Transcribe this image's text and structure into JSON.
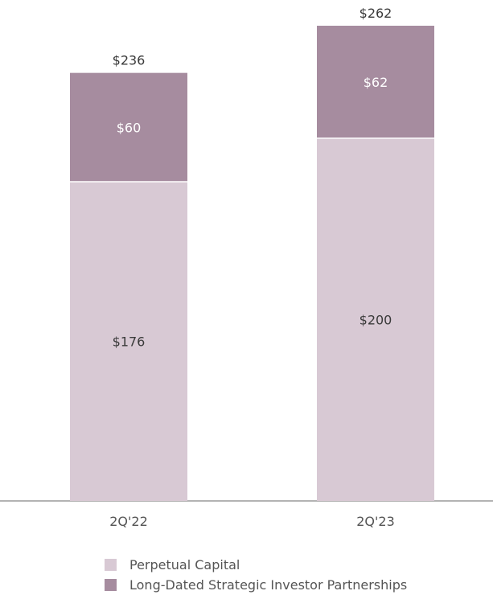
{
  "chart_data": {
    "type": "bar",
    "stacked": true,
    "categories": [
      "2Q'22",
      "2Q'23"
    ],
    "series": [
      {
        "name": "Perpetual Capital",
        "values": [
          176,
          200
        ],
        "value_labels": [
          "$176",
          "$200"
        ],
        "color": "#d8c9d4"
      },
      {
        "name": "Long-Dated Strategic Investor Partnerships",
        "values": [
          60,
          62
        ],
        "value_labels": [
          "$60",
          "$62"
        ],
        "color": "#a68c9f"
      }
    ],
    "totals": [
      236,
      262
    ],
    "total_labels": [
      "$236",
      "$262"
    ],
    "ylim": [
      0,
      262
    ],
    "grid": false,
    "legend": "bottom",
    "title": "",
    "xlabel": "",
    "ylabel": ""
  }
}
